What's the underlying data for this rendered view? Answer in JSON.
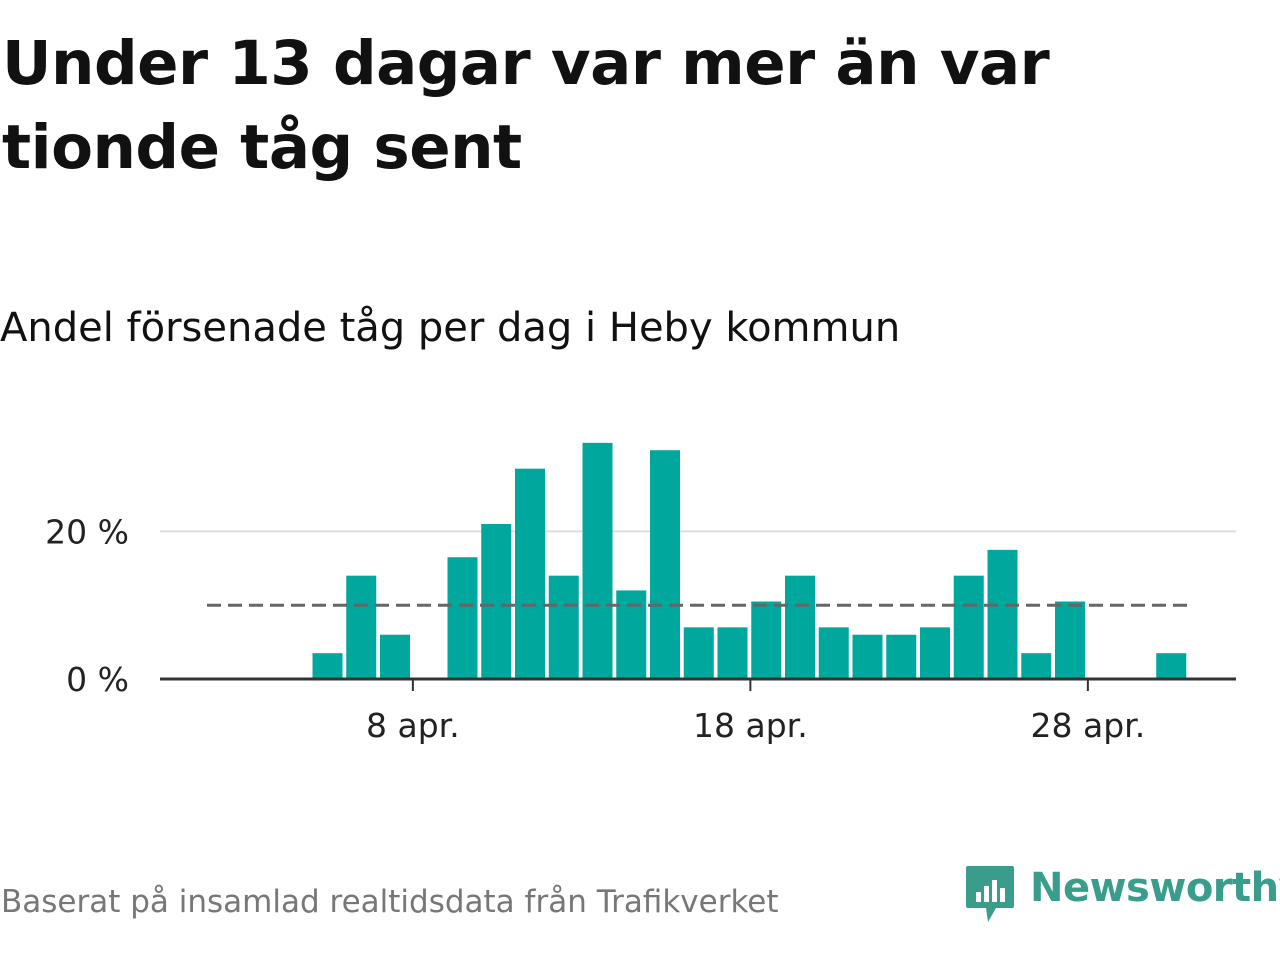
{
  "title": "Under 13 dagar var mer än var tionde tåg sent",
  "subtitle": "Andel försenade tåg per dag i Heby kommun",
  "footer": "Baserat på insamlad realtidsdata från Trafikverket",
  "logo": {
    "name": "Newsworthy",
    "icon": "newsworthy-logo-icon"
  },
  "colors": {
    "bar": "#00a79d",
    "reference_line": "#666666",
    "grid": "#dddddd",
    "axis": "#333333",
    "logo": "#3a9d8c"
  },
  "chart_data": {
    "type": "bar",
    "title": "Andel försenade tåg per dag i Heby kommun",
    "xlabel": "",
    "ylabel": "",
    "x_unit": "day of April",
    "x": [
      1,
      2,
      3,
      4,
      5,
      6,
      7,
      8,
      9,
      10,
      11,
      12,
      13,
      14,
      15,
      16,
      17,
      18,
      19,
      20,
      21,
      22,
      23,
      24,
      25,
      26,
      27,
      28,
      29,
      30
    ],
    "values": [
      0,
      0,
      0,
      0,
      3.5,
      14,
      6,
      0,
      16.5,
      21,
      28.5,
      14,
      32,
      12,
      31,
      7,
      7,
      10.5,
      14,
      7,
      6,
      6,
      7,
      14,
      17.5,
      3.5,
      10.5,
      0,
      0,
      3.5
    ],
    "y_unit": "%",
    "ylim": [
      0,
      33
    ],
    "y_ticks": [
      0,
      20
    ],
    "y_tick_labels": [
      "0 %",
      "20 %"
    ],
    "x_ticks": [
      8,
      18,
      28
    ],
    "x_tick_labels": [
      "8 apr.",
      "18 apr.",
      "28 apr."
    ],
    "reference_line": {
      "value": 10,
      "style": "dashed"
    },
    "grid": "horizontal"
  }
}
